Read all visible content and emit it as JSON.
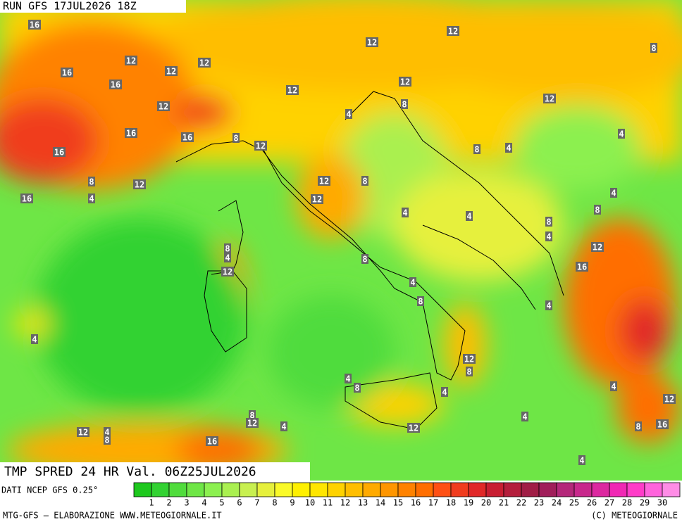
{
  "header": {
    "run": "RUN GFS 17JUL2026 18Z"
  },
  "title": "TMP SPRED 24 HR Val. 06Z25JUL2026",
  "source": "DATI NCEP GFS 0.25°",
  "credit_left": "MTG-GFS — ELABORAZIONE WWW.METEOGIORNALE.IT",
  "credit_right": "(C) METEOGIORNALE",
  "legend": {
    "labels": [
      1,
      2,
      3,
      4,
      5,
      6,
      7,
      8,
      9,
      10,
      11,
      12,
      13,
      14,
      15,
      16,
      17,
      18,
      19,
      20,
      21,
      22,
      23,
      24,
      25,
      26,
      27,
      28,
      29,
      30
    ],
    "colors": [
      "#1ec81e",
      "#32d232",
      "#50dc3c",
      "#6ee646",
      "#8cf050",
      "#aaf050",
      "#c8f050",
      "#e6f03c",
      "#fafa28",
      "#fff000",
      "#ffe600",
      "#ffd200",
      "#ffbe00",
      "#ffaa00",
      "#ff9600",
      "#ff8200",
      "#ff6e00",
      "#ff5014",
      "#f03c1e",
      "#e12828",
      "#c81e32",
      "#b41e3c",
      "#a01e46",
      "#a01e5a",
      "#b4287a",
      "#c8288c",
      "#dc28a0",
      "#f028b4",
      "#ff3cc8",
      "#ff64dc",
      "#ff8ce6"
    ]
  },
  "map_labels": [
    16,
    12,
    12,
    12,
    16,
    16,
    12,
    16,
    16,
    16,
    8,
    12,
    8,
    4,
    12,
    16,
    12,
    12,
    8,
    12,
    12,
    12,
    4,
    8,
    4,
    8,
    4,
    12,
    8,
    12,
    4,
    8,
    4,
    4,
    8,
    4,
    8,
    4,
    12,
    8,
    12,
    16,
    4,
    8,
    4,
    4,
    12,
    8,
    4,
    8,
    4,
    4,
    12,
    4,
    8,
    12,
    4,
    12,
    4,
    8,
    16,
    12,
    8,
    16,
    4
  ]
}
